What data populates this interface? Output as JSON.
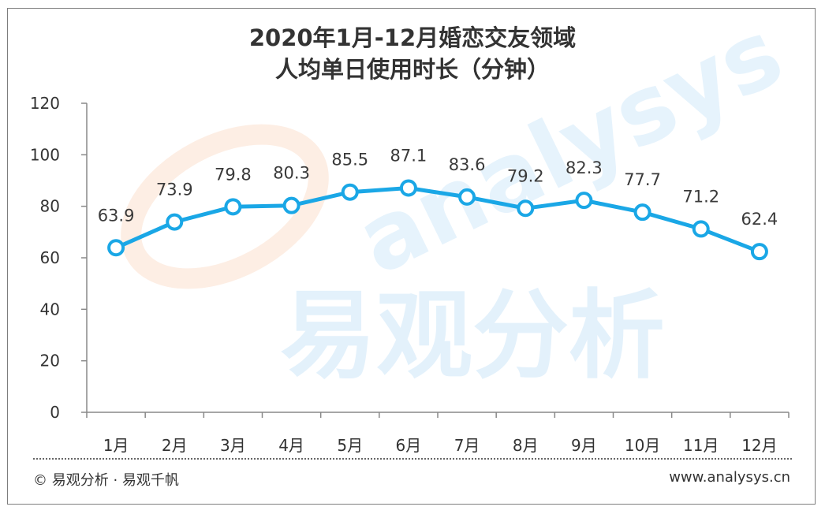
{
  "colors": {
    "line": "#1aa7e6",
    "axis": "#888888",
    "text": "#333333",
    "watermark_blue": "#e3f1fb",
    "watermark_orange": "#fdeee4"
  },
  "watermark": {
    "cn": "易观分析",
    "en": "analysys"
  },
  "footer": {
    "source": "© 易观分析 · 易观千帆",
    "url": "www.analysys.cn"
  },
  "chart_data": {
    "type": "line",
    "title": [
      "2020年1月-12月婚恋交友领域",
      "人均单日使用时长（分钟）"
    ],
    "categories": [
      "1月",
      "2月",
      "3月",
      "4月",
      "5月",
      "6月",
      "7月",
      "8月",
      "9月",
      "10月",
      "11月",
      "12月"
    ],
    "series": [
      {
        "values": [
          63.9,
          73.9,
          79.8,
          80.3,
          85.5,
          87.1,
          83.6,
          79.2,
          82.3,
          77.7,
          71.2,
          62.4
        ]
      }
    ],
    "ylim": [
      0,
      120
    ],
    "yticks": [
      0,
      20,
      40,
      60,
      80,
      100,
      120
    ],
    "grid": false,
    "data_labels": true
  }
}
